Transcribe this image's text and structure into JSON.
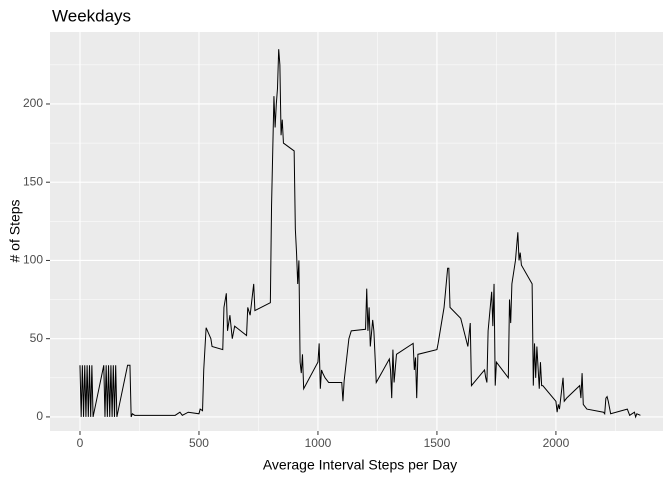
{
  "chart_data": {
    "type": "line",
    "title": "Weekdays",
    "x_label": "Average Interval Steps per Day",
    "y_label": "# of Steps",
    "x": [
      0,
      5,
      10,
      15,
      20,
      25,
      30,
      35,
      40,
      45,
      50,
      55,
      100,
      105,
      110,
      115,
      120,
      125,
      130,
      135,
      140,
      145,
      150,
      155,
      200,
      205,
      210,
      215,
      220,
      230,
      300,
      400,
      420,
      430,
      455,
      500,
      505,
      515,
      520,
      530,
      550,
      555,
      600,
      605,
      615,
      620,
      630,
      640,
      650,
      700,
      705,
      715,
      730,
      735,
      800,
      805,
      815,
      820,
      825,
      830,
      835,
      840,
      845,
      850,
      855,
      900,
      905,
      910,
      915,
      920,
      925,
      930,
      935,
      940,
      1000,
      1005,
      1010,
      1015,
      1020,
      1030,
      1045,
      1100,
      1105,
      1110,
      1130,
      1140,
      1200,
      1205,
      1210,
      1215,
      1220,
      1230,
      1235,
      1245,
      1300,
      1305,
      1310,
      1315,
      1320,
      1330,
      1400,
      1405,
      1410,
      1415,
      1420,
      1500,
      1505,
      1530,
      1545,
      1550,
      1555,
      1600,
      1630,
      1640,
      1645,
      1700,
      1705,
      1710,
      1715,
      1730,
      1735,
      1740,
      1745,
      1750,
      1800,
      1805,
      1810,
      1815,
      1830,
      1840,
      1845,
      1850,
      1855,
      1900,
      1905,
      1910,
      1915,
      1920,
      1930,
      1935,
      1940,
      1945,
      2000,
      2005,
      2010,
      2015,
      2030,
      2035,
      2045,
      2100,
      2105,
      2110,
      2115,
      2130,
      2200,
      2205,
      2210,
      2215,
      2220,
      2230,
      2300,
      2305,
      2310,
      2330,
      2335,
      2340,
      2355
    ],
    "values": [
      33,
      0,
      33,
      0,
      33,
      0,
      33,
      0,
      33,
      0,
      33,
      0,
      33,
      0,
      33,
      0,
      33,
      0,
      33,
      0,
      33,
      0,
      33,
      0,
      33,
      33,
      33,
      0,
      2,
      1,
      1,
      1,
      3,
      1,
      3,
      2,
      5,
      4,
      30,
      57,
      50,
      45,
      43,
      70,
      79,
      55,
      65,
      50,
      58,
      52,
      70,
      65,
      85,
      68,
      73,
      135,
      205,
      185,
      200,
      210,
      235,
      225,
      180,
      190,
      175,
      170,
      120,
      105,
      85,
      100,
      35,
      28,
      40,
      18,
      35,
      47,
      18,
      30,
      28,
      25,
      22,
      22,
      10,
      23,
      50,
      55,
      56,
      82,
      55,
      70,
      45,
      62,
      55,
      22,
      37,
      30,
      12,
      43,
      22,
      40,
      47,
      30,
      38,
      12,
      40,
      43,
      47,
      70,
      95,
      95,
      70,
      63,
      45,
      60,
      20,
      30,
      25,
      22,
      55,
      80,
      58,
      85,
      20,
      35,
      25,
      75,
      60,
      85,
      100,
      118,
      100,
      105,
      97,
      85,
      20,
      47,
      25,
      45,
      18,
      35,
      20,
      20,
      10,
      3,
      8,
      5,
      25,
      10,
      12,
      20,
      12,
      28,
      8,
      5,
      3,
      2,
      12,
      13,
      10,
      2,
      5,
      3,
      1,
      3,
      0,
      2,
      1
    ],
    "color": "#000000",
    "xlim": [
      -126,
      2450
    ],
    "ylim": [
      -9,
      246
    ],
    "xticks": [
      0,
      500,
      1000,
      1500,
      2000
    ],
    "yticks": [
      0,
      50,
      100,
      150,
      200
    ],
    "x_minor_grid": [
      250,
      750,
      1250,
      1750,
      2250
    ],
    "y_minor_grid": [
      25,
      75,
      125,
      175,
      225
    ],
    "grid": true,
    "panel_color": "#ebebeb"
  }
}
